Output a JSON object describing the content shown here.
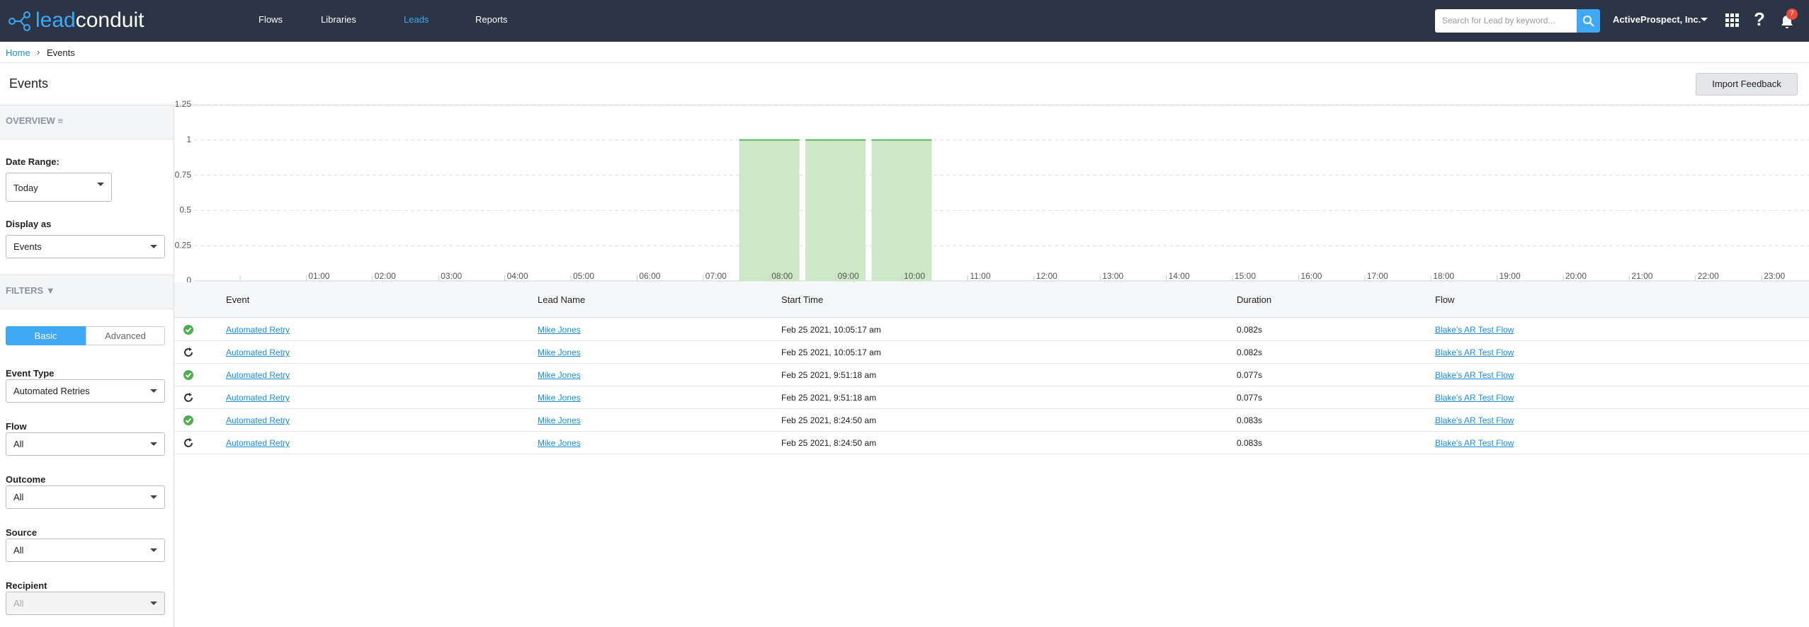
{
  "header": {
    "logo_left": "lead",
    "logo_right": "conduit",
    "nav": [
      "Flows",
      "Libraries",
      "Leads",
      "Reports"
    ],
    "search_placeholder": "Search for Lead by keyword...",
    "account": "ActiveProspect, Inc.",
    "notifications": "7"
  },
  "breadcrumb": [
    "Home",
    "Events"
  ],
  "page": {
    "title": "Events",
    "button": "Import Feedback"
  },
  "sidebar": {
    "overview": "OVERVIEW",
    "date_range_label": "Date Range:",
    "date_range": "Today",
    "display_as_label": "Display as",
    "display_as": "Events",
    "filters": "FILTERS",
    "tabs": [
      "Basic",
      "Advanced"
    ],
    "fields": [
      {
        "label": "Event Type",
        "value": "Automated Retries"
      },
      {
        "label": "Flow",
        "value": "All"
      },
      {
        "label": "Outcome",
        "value": "All"
      },
      {
        "label": "Source",
        "value": "All"
      },
      {
        "label": "Recipient",
        "value": "All"
      }
    ]
  },
  "chart_data": {
    "type": "bar",
    "categories": [
      null,
      "01:00",
      "02:00",
      "03:00",
      "04:00",
      "05:00",
      "06:00",
      "07:00",
      "08:00",
      "09:00",
      "10:00",
      "11:00",
      "12:00",
      "13:00",
      "14:00",
      "15:00",
      "16:00",
      "17:00",
      "18:00",
      "19:00",
      "20:00",
      "21:00",
      "22:00",
      "23:00"
    ],
    "values": [
      0,
      0,
      0,
      0,
      0,
      0,
      0,
      0,
      1,
      1,
      1,
      0,
      0,
      0,
      0,
      0,
      0,
      0,
      0,
      0,
      0,
      0,
      0,
      0
    ],
    "color": "#cce8c6",
    "ylim": [
      0,
      1.25
    ],
    "yticks": [
      0,
      0.25,
      0.5,
      0.75,
      1,
      1.25
    ],
    "grid": true
  },
  "table": {
    "columns": [
      "Event",
      "Lead Name",
      "Start Time",
      "Duration",
      "Flow"
    ],
    "rows": [
      [
        "Automated Retry",
        "Mike Jones",
        "Feb 25 2021, 10:05:17 am",
        "0.082s",
        "Blake's AR Test Flow"
      ],
      [
        "Automated Retry",
        "Mike Jones",
        "Feb 25 2021, 10:05:17 am",
        "0.082s",
        "Blake's AR Test Flow"
      ],
      [
        "Automated Retry",
        "Mike Jones",
        "Feb 25 2021, 9:51:18 am",
        "0.077s",
        "Blake's AR Test Flow"
      ],
      [
        "Automated Retry",
        "Mike Jones",
        "Feb 25 2021, 9:51:18 am",
        "0.077s",
        "Blake's AR Test Flow"
      ],
      [
        "Automated Retry",
        "Mike Jones",
        "Feb 25 2021, 8:24:50 am",
        "0.083s",
        "Blake's AR Test Flow"
      ],
      [
        "Automated Retry",
        "Mike Jones",
        "Feb 25 2021, 8:24:50 am",
        "0.083s",
        "Blake's AR Test Flow"
      ]
    ]
  }
}
